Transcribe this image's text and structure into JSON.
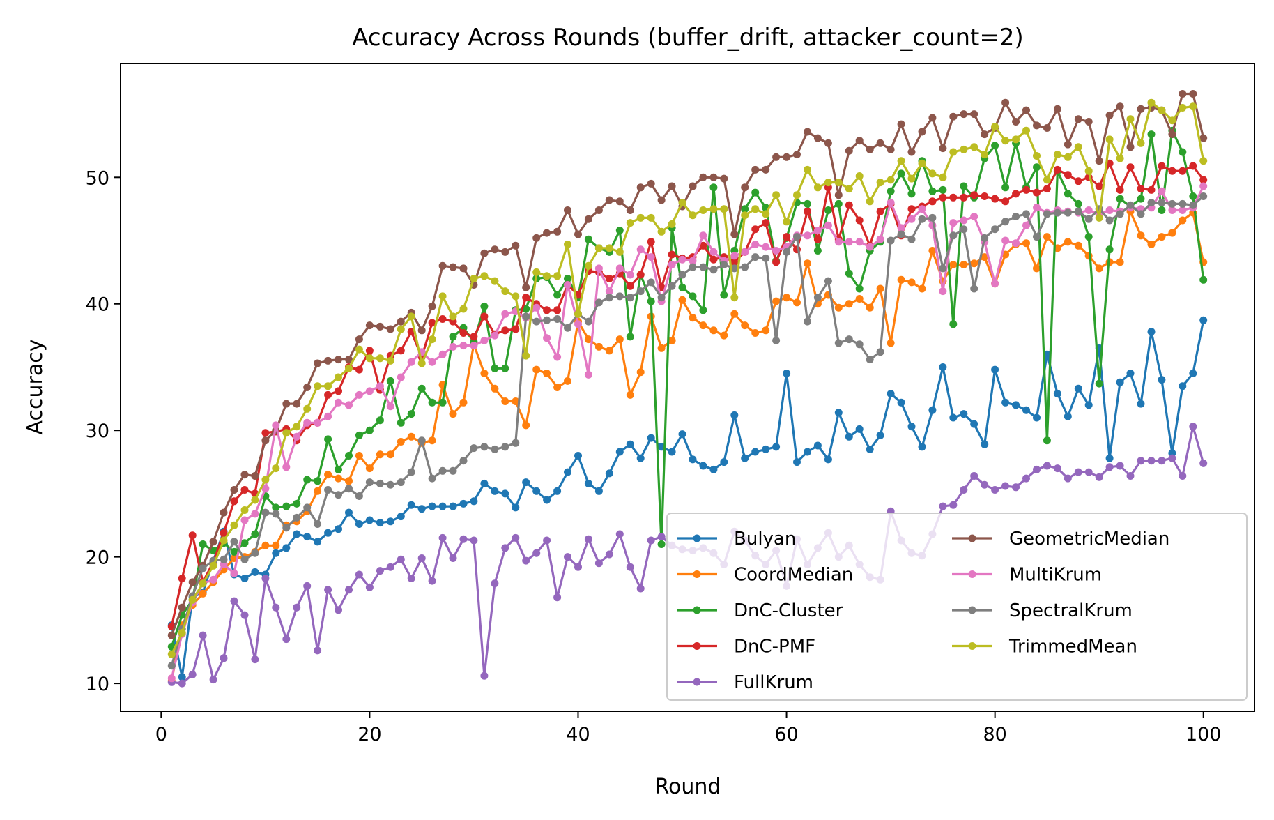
{
  "chart_data": {
    "type": "line",
    "title": "Accuracy Across Rounds (buffer_drift, attacker_count=2)",
    "xlabel": "Round",
    "ylabel": "Accuracy",
    "xlim": [
      -3.9,
      104.9
    ],
    "ylim": [
      7.8,
      59.0
    ],
    "xticks": [
      0,
      20,
      40,
      60,
      80,
      100
    ],
    "yticks": [
      10,
      20,
      30,
      40,
      50
    ],
    "grid": false,
    "legend_position": "lower-right",
    "legend_columns": 2,
    "x": [
      1,
      2,
      3,
      4,
      5,
      6,
      7,
      8,
      9,
      10,
      11,
      12,
      13,
      14,
      15,
      16,
      17,
      18,
      19,
      20,
      21,
      22,
      23,
      24,
      25,
      26,
      27,
      28,
      29,
      30,
      31,
      32,
      33,
      34,
      35,
      36,
      37,
      38,
      39,
      40,
      41,
      42,
      43,
      44,
      45,
      46,
      47,
      48,
      49,
      50,
      51,
      52,
      53,
      54,
      55,
      56,
      57,
      58,
      59,
      60,
      61,
      62,
      63,
      64,
      65,
      66,
      67,
      68,
      69,
      70,
      71,
      72,
      73,
      74,
      75,
      76,
      77,
      78,
      79,
      80,
      81,
      82,
      83,
      84,
      85,
      86,
      87,
      88,
      89,
      90,
      91,
      92,
      93,
      94,
      95,
      96,
      97,
      98,
      99,
      100
    ],
    "series": [
      {
        "name": "Bulyan",
        "color": "#1f77b4",
        "values": [
          14.6,
          10.5,
          16.8,
          17.2,
          19.7,
          22.0,
          18.6,
          18.3,
          18.8,
          18.6,
          20.3,
          20.7,
          21.8,
          21.6,
          21.2,
          21.9,
          22.2,
          23.5,
          22.6,
          22.9,
          22.7,
          22.8,
          23.2,
          24.1,
          23.8,
          24.0,
          24.0,
          24.0,
          24.2,
          24.4,
          25.8,
          25.2,
          25.0,
          23.9,
          25.9,
          25.2,
          24.5,
          25.2,
          26.7,
          28.0,
          25.8,
          25.2,
          26.6,
          28.3,
          28.9,
          27.8,
          29.4,
          28.7,
          28.3,
          29.7,
          27.7,
          27.2,
          26.9,
          27.5,
          31.2,
          27.8,
          28.3,
          28.5,
          28.7,
          34.5,
          27.5,
          28.3,
          28.8,
          27.7,
          31.4,
          29.5,
          30.1,
          28.5,
          29.6,
          32.9,
          32.2,
          30.3,
          28.7,
          31.6,
          35.0,
          31.0,
          31.3,
          30.5,
          28.9,
          34.8,
          32.2,
          32.0,
          31.6,
          31.0,
          36.0,
          32.9,
          31.1,
          33.3,
          32.0,
          36.5,
          27.8,
          33.8,
          34.5,
          32.1,
          37.8,
          34.0,
          28.2,
          33.5,
          34.5,
          38.7
        ]
      },
      {
        "name": "CoordMedian",
        "color": "#ff7f0e",
        "values": [
          10.2,
          14.6,
          16.2,
          17.1,
          18.0,
          19.0,
          19.9,
          20.0,
          20.4,
          20.9,
          20.9,
          22.5,
          22.8,
          23.6,
          25.2,
          26.5,
          26.2,
          26.0,
          28.0,
          27.0,
          28.1,
          28.1,
          29.1,
          29.5,
          29.0,
          29.2,
          33.6,
          31.3,
          32.2,
          36.8,
          34.5,
          33.3,
          32.3,
          32.3,
          30.4,
          34.8,
          34.5,
          33.4,
          33.9,
          38.6,
          37.2,
          36.6,
          36.3,
          37.2,
          32.8,
          34.6,
          39.0,
          36.5,
          37.1,
          40.3,
          38.9,
          38.3,
          37.9,
          37.5,
          39.2,
          38.3,
          37.7,
          37.9,
          40.2,
          40.5,
          40.1,
          43.2,
          40.0,
          40.7,
          39.7,
          40.0,
          40.4,
          39.7,
          41.2,
          36.9,
          41.9,
          41.7,
          41.2,
          44.2,
          41.8,
          43.1,
          43.1,
          43.2,
          43.7,
          41.6,
          43.9,
          44.7,
          44.8,
          42.8,
          45.3,
          44.4,
          44.9,
          44.6,
          43.8,
          42.8,
          43.3,
          43.3,
          47.3,
          45.4,
          44.7,
          45.3,
          45.6,
          46.6,
          47.2,
          43.3
        ]
      },
      {
        "name": "DnC-Cluster",
        "color": "#2ca02c",
        "values": [
          12.9,
          15.4,
          16.6,
          21.0,
          20.5,
          21.1,
          20.4,
          21.1,
          21.8,
          24.8,
          23.9,
          24.0,
          24.2,
          26.1,
          26.0,
          29.3,
          26.9,
          28.0,
          29.6,
          30.0,
          30.8,
          33.9,
          30.6,
          31.3,
          33.3,
          32.2,
          32.2,
          37.4,
          38.1,
          37.0,
          39.8,
          34.9,
          34.9,
          39.5,
          39.6,
          42.0,
          42.1,
          40.7,
          42.0,
          40.5,
          45.1,
          44.4,
          44.1,
          45.8,
          37.4,
          42.3,
          40.2,
          21.0,
          46.0,
          41.3,
          40.6,
          39.5,
          49.2,
          40.7,
          44.2,
          47.5,
          48.8,
          47.6,
          43.4,
          45.2,
          48.0,
          47.9,
          44.2,
          47.4,
          47.9,
          42.4,
          41.2,
          44.2,
          44.9,
          48.9,
          50.3,
          48.7,
          51.3,
          48.9,
          49.0,
          38.4,
          49.3,
          48.4,
          51.5,
          52.5,
          49.2,
          52.7,
          49.2,
          50.8,
          29.2,
          50.5,
          48.7,
          47.9,
          45.3,
          33.7,
          44.3,
          48.3,
          47.7,
          48.3,
          53.4,
          47.4,
          53.7,
          52.0,
          48.5,
          41.9
        ]
      },
      {
        "name": "DnC-PMF",
        "color": "#d62728",
        "values": [
          14.5,
          18.3,
          21.7,
          18.0,
          19.6,
          21.9,
          24.4,
          25.3,
          25.0,
          29.8,
          29.9,
          30.1,
          29.2,
          30.4,
          30.6,
          32.8,
          33.1,
          35.0,
          34.8,
          36.3,
          33.2,
          35.9,
          36.3,
          37.8,
          35.8,
          38.5,
          38.8,
          38.6,
          37.7,
          37.4,
          39.0,
          37.6,
          37.9,
          38.0,
          40.5,
          40.0,
          39.5,
          39.5,
          41.5,
          40.7,
          42.6,
          42.5,
          42.0,
          42.4,
          41.4,
          42.3,
          44.9,
          41.3,
          43.9,
          43.6,
          43.7,
          44.6,
          43.5,
          43.7,
          43.3,
          44.1,
          45.9,
          46.4,
          43.3,
          45.3,
          44.3,
          47.3,
          45.1,
          49.2,
          45.1,
          47.8,
          46.6,
          44.6,
          47.3,
          47.9,
          45.4,
          47.5,
          47.7,
          48.1,
          48.4,
          48.4,
          48.4,
          48.6,
          48.5,
          48.3,
          48.1,
          48.7,
          49.0,
          48.8,
          49.1,
          50.6,
          50.2,
          49.7,
          50.0,
          49.3,
          51.1,
          49.0,
          50.8,
          49.1,
          49.0,
          50.9,
          50.5,
          50.5,
          50.9,
          49.8
        ]
      },
      {
        "name": "FullKrum",
        "color": "#9467bd",
        "values": [
          10.1,
          10.0,
          10.7,
          13.8,
          10.3,
          12.0,
          16.5,
          15.4,
          11.9,
          18.3,
          16.0,
          13.5,
          16.0,
          17.7,
          12.6,
          17.4,
          15.8,
          17.4,
          18.6,
          17.6,
          18.9,
          19.2,
          19.8,
          18.3,
          19.9,
          18.1,
          21.5,
          19.9,
          21.4,
          21.3,
          10.6,
          17.9,
          20.7,
          21.5,
          19.7,
          20.3,
          21.3,
          16.8,
          20.0,
          19.2,
          21.4,
          19.5,
          20.2,
          21.8,
          19.2,
          17.5,
          21.3,
          21.6,
          20.9,
          20.6,
          20.5,
          20.7,
          20.3,
          19.4,
          22.0,
          21.3,
          20.1,
          19.4,
          20.5,
          17.7,
          21.4,
          19.4,
          20.7,
          21.9,
          20.0,
          20.9,
          19.4,
          18.4,
          18.2,
          23.6,
          21.3,
          20.3,
          20.1,
          21.8,
          24.0,
          24.1,
          25.3,
          26.4,
          25.7,
          25.3,
          25.6,
          25.5,
          26.2,
          26.9,
          27.2,
          27.0,
          26.2,
          26.7,
          26.7,
          26.3,
          27.1,
          27.2,
          26.4,
          27.6,
          27.6,
          27.6,
          27.8,
          26.4,
          30.3,
          27.4
        ]
      },
      {
        "name": "GeometricMedian",
        "color": "#8c564b",
        "values": [
          13.8,
          16.0,
          18.0,
          19.3,
          21.2,
          23.5,
          25.3,
          26.5,
          26.4,
          29.2,
          30.0,
          32.1,
          32.1,
          33.4,
          35.3,
          35.5,
          35.6,
          35.6,
          37.2,
          38.3,
          38.2,
          38.0,
          38.6,
          39.3,
          37.9,
          39.8,
          43.0,
          42.9,
          42.8,
          41.5,
          44.0,
          44.3,
          44.1,
          44.6,
          41.3,
          45.2,
          45.6,
          45.7,
          47.4,
          45.5,
          46.7,
          47.4,
          48.2,
          48.1,
          47.4,
          49.2,
          49.5,
          48.2,
          49.3,
          47.7,
          49.3,
          50.0,
          50.0,
          49.9,
          45.5,
          49.2,
          50.6,
          50.6,
          51.6,
          51.6,
          51.8,
          53.6,
          53.1,
          52.7,
          48.6,
          52.1,
          52.9,
          52.2,
          52.7,
          52.2,
          54.2,
          52.0,
          53.6,
          54.7,
          52.3,
          54.8,
          55.0,
          55.0,
          53.4,
          53.9,
          55.9,
          54.4,
          55.3,
          54.1,
          53.9,
          55.4,
          52.6,
          54.6,
          54.4,
          51.3,
          54.9,
          55.6,
          52.4,
          55.4,
          55.5,
          55.3,
          53.4,
          56.6,
          56.6,
          53.1
        ]
      },
      {
        "name": "MultiKrum",
        "color": "#e377c2",
        "values": [
          10.4,
          13.9,
          16.4,
          17.9,
          18.2,
          19.4,
          18.7,
          22.9,
          23.4,
          25.4,
          30.4,
          27.1,
          29.5,
          30.6,
          30.6,
          31.1,
          32.2,
          32.0,
          32.8,
          33.1,
          33.5,
          31.9,
          34.2,
          35.4,
          36.2,
          35.4,
          36.0,
          36.6,
          36.7,
          36.7,
          37.1,
          37.5,
          39.2,
          39.4,
          38.9,
          39.7,
          37.3,
          35.8,
          41.5,
          38.4,
          34.4,
          42.8,
          41.0,
          42.8,
          42.3,
          44.3,
          43.7,
          40.2,
          43.1,
          43.5,
          43.4,
          45.4,
          44.1,
          43.4,
          43.8,
          44.1,
          44.7,
          44.5,
          44.2,
          44.5,
          45.4,
          45.4,
          45.8,
          46.2,
          44.9,
          44.9,
          44.9,
          44.5,
          45.1,
          48.0,
          46.0,
          46.7,
          47.5,
          46.2,
          41.0,
          46.4,
          46.6,
          46.9,
          44.9,
          41.6,
          45.0,
          44.8,
          46.2,
          47.6,
          47.2,
          47.4,
          47.3,
          47.2,
          47.4,
          47.1,
          47.4,
          47.3,
          47.6,
          47.5,
          47.6,
          48.9,
          47.4,
          47.4,
          47.6,
          49.3
        ]
      },
      {
        "name": "SpectralKrum",
        "color": "#7f7f7f",
        "values": [
          11.4,
          14.3,
          16.9,
          19.1,
          19.7,
          19.8,
          21.2,
          19.8,
          20.3,
          23.5,
          23.4,
          22.3,
          23.1,
          23.9,
          22.6,
          25.3,
          24.9,
          25.4,
          24.8,
          25.9,
          25.8,
          25.7,
          25.9,
          26.7,
          29.2,
          26.2,
          26.8,
          26.8,
          27.6,
          28.6,
          28.7,
          28.5,
          28.7,
          29.0,
          39.0,
          38.6,
          38.7,
          38.8,
          38.1,
          39.2,
          38.6,
          40.1,
          40.5,
          40.6,
          40.5,
          41.0,
          41.7,
          40.5,
          41.4,
          42.3,
          42.9,
          42.9,
          42.7,
          43.1,
          42.8,
          42.9,
          43.7,
          43.6,
          37.1,
          44.1,
          45.3,
          38.6,
          40.5,
          41.8,
          36.9,
          37.2,
          36.8,
          35.6,
          36.2,
          45.0,
          45.5,
          45.1,
          46.7,
          46.8,
          42.8,
          45.4,
          45.9,
          41.2,
          45.2,
          45.9,
          46.5,
          46.9,
          47.1,
          45.3,
          47.1,
          47.2,
          47.2,
          47.3,
          46.7,
          47.5,
          46.6,
          47.1,
          47.8,
          47.1,
          48.0,
          48.0,
          47.9,
          47.9,
          47.8,
          48.5
        ]
      },
      {
        "name": "TrimmedMean",
        "color": "#bcbd22",
        "values": [
          12.3,
          14.0,
          16.6,
          17.9,
          19.3,
          21.3,
          22.5,
          23.7,
          24.5,
          26.1,
          27.0,
          29.8,
          30.3,
          31.7,
          33.5,
          33.5,
          34.2,
          34.9,
          36.4,
          35.7,
          35.7,
          35.5,
          38.0,
          39.0,
          35.3,
          37.2,
          40.6,
          39.0,
          39.6,
          42.0,
          42.2,
          41.8,
          41.0,
          40.6,
          35.9,
          42.5,
          42.2,
          42.2,
          44.7,
          39.2,
          43.0,
          44.4,
          44.4,
          44.1,
          46.4,
          46.8,
          46.8,
          45.7,
          46.3,
          48.0,
          47.0,
          47.4,
          47.5,
          47.5,
          40.5,
          47.0,
          47.5,
          47.1,
          48.6,
          46.5,
          48.6,
          50.6,
          49.2,
          49.6,
          49.6,
          49.1,
          50.1,
          48.1,
          49.6,
          49.8,
          51.3,
          49.9,
          51.1,
          50.3,
          50.0,
          52.0,
          52.2,
          52.4,
          51.8,
          54.0,
          52.9,
          53.0,
          53.7,
          51.7,
          49.8,
          51.8,
          51.6,
          52.4,
          50.5,
          46.8,
          53.0,
          51.5,
          54.6,
          52.7,
          55.9,
          55.3,
          54.5,
          55.5,
          55.6,
          51.3
        ]
      }
    ]
  }
}
